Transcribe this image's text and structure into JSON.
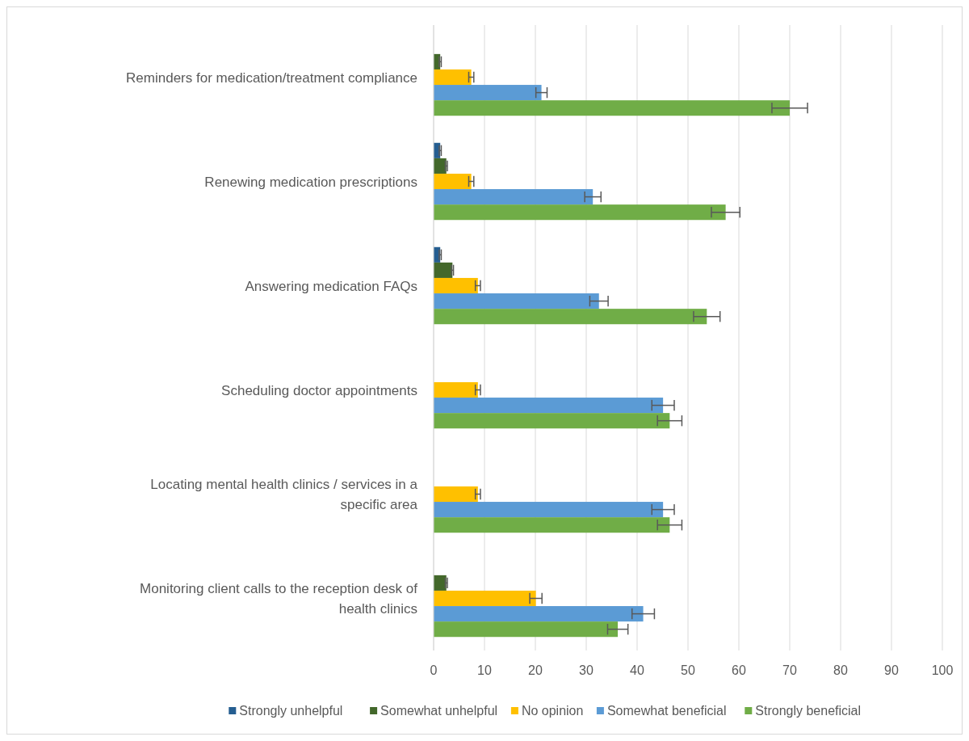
{
  "chart_data": {
    "type": "bar",
    "orientation": "horizontal",
    "categories": [
      "Reminders for medication/treatment compliance",
      "Renewing medication prescriptions",
      "Answering medication FAQs",
      "Scheduling doctor appointments",
      "Locating mental health clinics / services in a specific area",
      "Monitoring client calls to the reception desk of health clinics"
    ],
    "series": [
      {
        "name": "Strongly unhelpful",
        "color": "#255e91",
        "values": [
          null,
          1.3,
          1.3,
          null,
          null,
          null
        ],
        "errors": [
          null,
          0.2,
          0.2,
          null,
          null,
          null
        ]
      },
      {
        "name": "Somewhat unhelpful",
        "color": "#43682b",
        "values": [
          1.3,
          2.5,
          3.7,
          null,
          null,
          2.5
        ],
        "errors": [
          0.2,
          0.2,
          0.2,
          null,
          null,
          0.2
        ]
      },
      {
        "name": "No opinion",
        "color": "#ffc000",
        "values": [
          7.4,
          7.4,
          8.7,
          8.7,
          8.7,
          20.1
        ],
        "errors": [
          0.5,
          0.5,
          0.5,
          0.5,
          0.5,
          1.2
        ]
      },
      {
        "name": "Somewhat beneficial",
        "color": "#5b9bd5",
        "values": [
          21.2,
          31.3,
          32.5,
          45.1,
          45.1,
          41.2
        ],
        "errors": [
          1.1,
          1.6,
          1.8,
          2.2,
          2.2,
          2.2
        ]
      },
      {
        "name": "Strongly beneficial",
        "color": "#70ad47",
        "values": [
          70,
          57.4,
          53.7,
          46.4,
          46.4,
          36.2
        ],
        "errors": [
          3.5,
          2.8,
          2.6,
          2.4,
          2.4,
          2.0
        ]
      }
    ],
    "xlim": [
      0,
      100
    ],
    "xticks": [
      0,
      10,
      20,
      30,
      40,
      50,
      60,
      70,
      80,
      90,
      100
    ],
    "grid": "x",
    "legend": "bottom"
  }
}
